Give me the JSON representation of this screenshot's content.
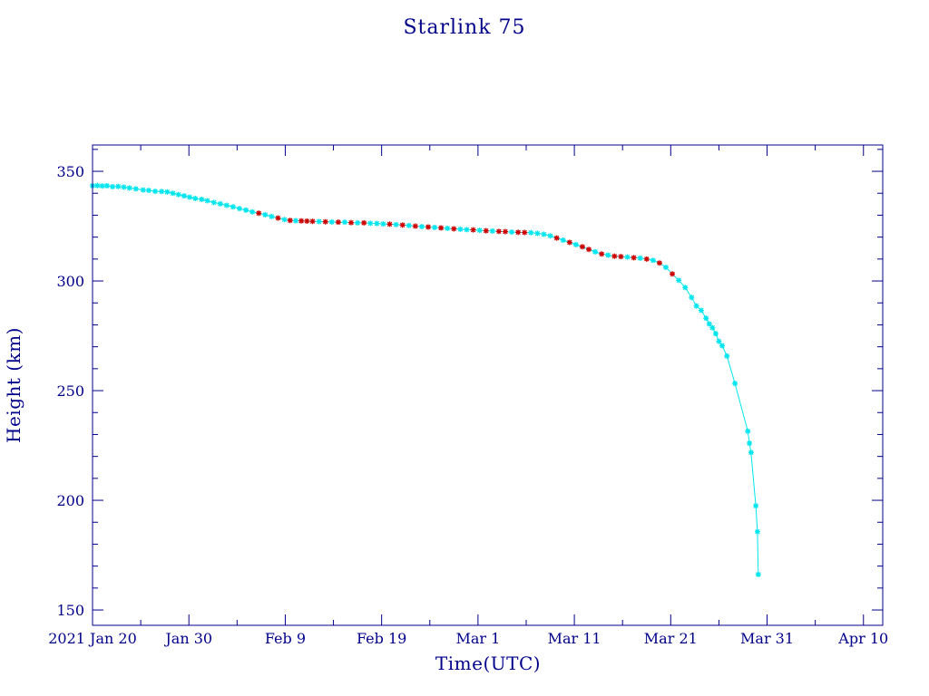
{
  "chart_data": {
    "type": "line",
    "title": "Starlink 75",
    "xlabel": "Time(UTC)",
    "ylabel": "Height (km)",
    "x_type": "date",
    "xlim": [
      "2021-01-20",
      "2021-04-12"
    ],
    "ylim": [
      143,
      362
    ],
    "x_tick_labels": [
      "2021 Jan 20",
      "Jan 30",
      "Feb  9",
      "Feb 19",
      "Mar  1",
      "Mar 11",
      "Mar 21",
      "Mar 31",
      "Apr 10"
    ],
    "x_tick_dates": [
      "2021-01-20",
      "2021-01-30",
      "2021-02-09",
      "2021-02-19",
      "2021-03-01",
      "2021-03-11",
      "2021-03-21",
      "2021-03-31",
      "2021-04-10"
    ],
    "y_ticks": [
      150,
      200,
      250,
      300,
      350
    ],
    "grid": false,
    "colors": {
      "axes": "#00008b",
      "line": "#00e5ee",
      "marker_cyan": "#00e5ee",
      "marker_red": "#cc0000"
    },
    "series": [
      {
        "points": [
          {
            "x": "2021-01-20 00:00",
            "y": 343.4,
            "m": "c"
          },
          {
            "x": "2021-01-20 12:00",
            "y": 343.5,
            "m": "c"
          },
          {
            "x": "2021-01-21 00:00",
            "y": 343.3,
            "m": "c"
          },
          {
            "x": "2021-01-21 12:00",
            "y": 343.4,
            "m": "c"
          },
          {
            "x": "2021-01-22 02:00",
            "y": 343.0,
            "m": "c"
          },
          {
            "x": "2021-01-22 16:00",
            "y": 343.1,
            "m": "c"
          },
          {
            "x": "2021-01-23 06:00",
            "y": 342.8,
            "m": "c"
          },
          {
            "x": "2021-01-23 20:00",
            "y": 342.4,
            "m": "c"
          },
          {
            "x": "2021-01-24 12:00",
            "y": 342.0,
            "m": "c"
          },
          {
            "x": "2021-01-25 06:00",
            "y": 341.5,
            "m": "c"
          },
          {
            "x": "2021-01-25 20:00",
            "y": 341.3,
            "m": "c"
          },
          {
            "x": "2021-01-26 12:00",
            "y": 340.9,
            "m": "c"
          },
          {
            "x": "2021-01-27 04:00",
            "y": 340.8,
            "m": "c"
          },
          {
            "x": "2021-01-27 18:00",
            "y": 340.6,
            "m": "c"
          },
          {
            "x": "2021-01-28 08:00",
            "y": 340.0,
            "m": "c"
          },
          {
            "x": "2021-01-28 22:00",
            "y": 339.4,
            "m": "c"
          },
          {
            "x": "2021-01-29 12:00",
            "y": 338.8,
            "m": "c"
          },
          {
            "x": "2021-01-30 02:00",
            "y": 338.2,
            "m": "c"
          },
          {
            "x": "2021-01-30 16:00",
            "y": 337.6,
            "m": "c"
          },
          {
            "x": "2021-01-31 08:00",
            "y": 337.2,
            "m": "c"
          },
          {
            "x": "2021-01-31 22:00",
            "y": 336.6,
            "m": "c"
          },
          {
            "x": "2021-02-01 14:00",
            "y": 335.8,
            "m": "c"
          },
          {
            "x": "2021-02-02 06:00",
            "y": 335.2,
            "m": "c"
          },
          {
            "x": "2021-02-02 22:00",
            "y": 334.5,
            "m": "c"
          },
          {
            "x": "2021-02-03 14:00",
            "y": 333.8,
            "m": "c"
          },
          {
            "x": "2021-02-04 06:00",
            "y": 333.0,
            "m": "c"
          },
          {
            "x": "2021-02-04 22:00",
            "y": 332.3,
            "m": "c"
          },
          {
            "x": "2021-02-05 14:00",
            "y": 331.5,
            "m": "c"
          },
          {
            "x": "2021-02-06 06:00",
            "y": 330.9,
            "m": "r"
          },
          {
            "x": "2021-02-06 22:00",
            "y": 330.2,
            "m": "c"
          },
          {
            "x": "2021-02-07 14:00",
            "y": 329.4,
            "m": "c"
          },
          {
            "x": "2021-02-08 06:00",
            "y": 328.7,
            "m": "r"
          },
          {
            "x": "2021-02-08 22:00",
            "y": 328.0,
            "m": "c"
          },
          {
            "x": "2021-02-09 12:00",
            "y": 327.6,
            "m": "r"
          },
          {
            "x": "2021-02-10 02:00",
            "y": 327.5,
            "m": "c"
          },
          {
            "x": "2021-02-10 16:00",
            "y": 327.4,
            "m": "r"
          },
          {
            "x": "2021-02-11 06:00",
            "y": 327.3,
            "m": "r"
          },
          {
            "x": "2021-02-11 20:00",
            "y": 327.2,
            "m": "r"
          },
          {
            "x": "2021-02-12 12:00",
            "y": 327.1,
            "m": "c"
          },
          {
            "x": "2021-02-13 04:00",
            "y": 327.0,
            "m": "r"
          },
          {
            "x": "2021-02-13 20:00",
            "y": 326.9,
            "m": "c"
          },
          {
            "x": "2021-02-14 12:00",
            "y": 326.8,
            "m": "r"
          },
          {
            "x": "2021-02-15 04:00",
            "y": 326.8,
            "m": "c"
          },
          {
            "x": "2021-02-15 20:00",
            "y": 326.6,
            "m": "r"
          },
          {
            "x": "2021-02-16 12:00",
            "y": 326.5,
            "m": "c"
          },
          {
            "x": "2021-02-17 04:00",
            "y": 326.5,
            "m": "r"
          },
          {
            "x": "2021-02-17 20:00",
            "y": 326.3,
            "m": "c"
          },
          {
            "x": "2021-02-18 12:00",
            "y": 326.2,
            "m": "c"
          },
          {
            "x": "2021-02-19 04:00",
            "y": 326.0,
            "m": "c"
          },
          {
            "x": "2021-02-19 20:00",
            "y": 325.9,
            "m": "r"
          },
          {
            "x": "2021-02-20 12:00",
            "y": 325.7,
            "m": "c"
          },
          {
            "x": "2021-02-21 04:00",
            "y": 325.5,
            "m": "r"
          },
          {
            "x": "2021-02-21 20:00",
            "y": 325.3,
            "m": "c"
          },
          {
            "x": "2021-02-22 12:00",
            "y": 325.0,
            "m": "r"
          },
          {
            "x": "2021-02-23 04:00",
            "y": 324.8,
            "m": "c"
          },
          {
            "x": "2021-02-23 20:00",
            "y": 324.6,
            "m": "r"
          },
          {
            "x": "2021-02-24 12:00",
            "y": 324.4,
            "m": "c"
          },
          {
            "x": "2021-02-25 04:00",
            "y": 324.2,
            "m": "r"
          },
          {
            "x": "2021-02-25 20:00",
            "y": 324.0,
            "m": "c"
          },
          {
            "x": "2021-02-26 12:00",
            "y": 323.8,
            "m": "r"
          },
          {
            "x": "2021-02-27 04:00",
            "y": 323.6,
            "m": "c"
          },
          {
            "x": "2021-02-27 20:00",
            "y": 323.4,
            "m": "c"
          },
          {
            "x": "2021-02-28 12:00",
            "y": 323.3,
            "m": "r"
          },
          {
            "x": "2021-03-01 04:00",
            "y": 323.1,
            "m": "c"
          },
          {
            "x": "2021-03-01 20:00",
            "y": 322.9,
            "m": "r"
          },
          {
            "x": "2021-03-02 12:00",
            "y": 322.8,
            "m": "c"
          },
          {
            "x": "2021-03-03 04:00",
            "y": 322.6,
            "m": "r"
          },
          {
            "x": "2021-03-03 20:00",
            "y": 322.5,
            "m": "r"
          },
          {
            "x": "2021-03-04 12:00",
            "y": 322.3,
            "m": "c"
          },
          {
            "x": "2021-03-05 04:00",
            "y": 322.2,
            "m": "r"
          },
          {
            "x": "2021-03-05 20:00",
            "y": 322.1,
            "m": "r"
          },
          {
            "x": "2021-03-06 12:00",
            "y": 322.0,
            "m": "c"
          },
          {
            "x": "2021-03-07 04:00",
            "y": 321.7,
            "m": "c"
          },
          {
            "x": "2021-03-07 20:00",
            "y": 321.3,
            "m": "c"
          },
          {
            "x": "2021-03-08 12:00",
            "y": 320.6,
            "m": "c"
          },
          {
            "x": "2021-03-09 04:00",
            "y": 319.6,
            "m": "r"
          },
          {
            "x": "2021-03-09 20:00",
            "y": 318.6,
            "m": "c"
          },
          {
            "x": "2021-03-10 12:00",
            "y": 317.6,
            "m": "r"
          },
          {
            "x": "2021-03-11 04:00",
            "y": 316.6,
            "m": "c"
          },
          {
            "x": "2021-03-11 20:00",
            "y": 315.6,
            "m": "r"
          },
          {
            "x": "2021-03-12 12:00",
            "y": 314.4,
            "m": "r"
          },
          {
            "x": "2021-03-13 04:00",
            "y": 313.3,
            "m": "c"
          },
          {
            "x": "2021-03-13 20:00",
            "y": 312.3,
            "m": "r"
          },
          {
            "x": "2021-03-14 12:00",
            "y": 311.8,
            "m": "c"
          },
          {
            "x": "2021-03-15 04:00",
            "y": 311.3,
            "m": "r"
          },
          {
            "x": "2021-03-15 20:00",
            "y": 311.1,
            "m": "r"
          },
          {
            "x": "2021-03-16 12:00",
            "y": 310.9,
            "m": "c"
          },
          {
            "x": "2021-03-17 04:00",
            "y": 310.6,
            "m": "r"
          },
          {
            "x": "2021-03-17 20:00",
            "y": 310.4,
            "m": "c"
          },
          {
            "x": "2021-03-18 12:00",
            "y": 310.0,
            "m": "r"
          },
          {
            "x": "2021-03-19 04:00",
            "y": 309.4,
            "m": "c"
          },
          {
            "x": "2021-03-19 20:00",
            "y": 308.2,
            "m": "r"
          },
          {
            "x": "2021-03-20 12:00",
            "y": 306.2,
            "m": "c"
          },
          {
            "x": "2021-03-21 04:00",
            "y": 303.2,
            "m": "r"
          },
          {
            "x": "2021-03-21 20:00",
            "y": 300.3,
            "m": "c"
          },
          {
            "x": "2021-03-22 12:00",
            "y": 297.0,
            "m": "c"
          },
          {
            "x": "2021-03-23 04:00",
            "y": 292.5,
            "m": "c"
          },
          {
            "x": "2021-03-23 16:00",
            "y": 288.6,
            "m": "c"
          },
          {
            "x": "2021-03-24 04:00",
            "y": 286.6,
            "m": "c"
          },
          {
            "x": "2021-03-24 16:00",
            "y": 283.0,
            "m": "c"
          },
          {
            "x": "2021-03-25 00:00",
            "y": 280.4,
            "m": "c"
          },
          {
            "x": "2021-03-25 08:00",
            "y": 278.7,
            "m": "c"
          },
          {
            "x": "2021-03-25 16:00",
            "y": 276.0,
            "m": "c"
          },
          {
            "x": "2021-03-26 00:00",
            "y": 272.5,
            "m": "c"
          },
          {
            "x": "2021-03-26 08:00",
            "y": 270.5,
            "m": "c"
          },
          {
            "x": "2021-03-26 20:00",
            "y": 265.8,
            "m": "c"
          },
          {
            "x": "2021-03-27 16:00",
            "y": 253.3,
            "m": "c"
          },
          {
            "x": "2021-03-29 00:00",
            "y": 231.5,
            "m": "c"
          },
          {
            "x": "2021-03-29 04:00",
            "y": 226.0,
            "m": "c"
          },
          {
            "x": "2021-03-29 08:00",
            "y": 221.8,
            "m": "c"
          },
          {
            "x": "2021-03-29 20:00",
            "y": 197.5,
            "m": "c"
          },
          {
            "x": "2021-03-30 00:00",
            "y": 185.7,
            "m": "c"
          },
          {
            "x": "2021-03-30 02:00",
            "y": 166.2,
            "m": "c"
          }
        ]
      }
    ]
  }
}
